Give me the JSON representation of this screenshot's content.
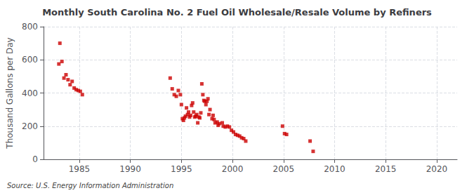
{
  "chart_data": {
    "type": "scatter",
    "title": "Monthly South Carolina No. 2 Fuel Oil Wholesale/Resale Volume by Refiners",
    "ylabel": "Thousand Gallons per Day",
    "source": "Source: U.S. Energy Information Administration",
    "color": "#cc0000",
    "marker": "square",
    "grid": true,
    "xlim": [
      1981.5,
      2022
    ],
    "ylim": [
      0,
      800
    ],
    "xticks": [
      1985,
      1990,
      1995,
      2000,
      2005,
      2010,
      2015,
      2020
    ],
    "yticks": [
      0,
      200,
      400,
      600,
      800
    ],
    "x": [
      1983.0,
      1983.1,
      1983.3,
      1983.5,
      1983.7,
      1983.9,
      1984.1,
      1984.3,
      1984.5,
      1984.7,
      1984.9,
      1985.1,
      1985.3,
      1993.9,
      1994.1,
      1994.3,
      1994.5,
      1994.7,
      1994.9,
      1995.0,
      1995.1,
      1995.2,
      1995.3,
      1995.4,
      1995.5,
      1995.6,
      1995.7,
      1995.8,
      1995.9,
      1996.0,
      1996.1,
      1996.2,
      1996.3,
      1996.4,
      1996.5,
      1996.6,
      1996.7,
      1996.8,
      1996.9,
      1997.0,
      1997.1,
      1997.2,
      1997.3,
      1997.4,
      1997.5,
      1997.6,
      1997.7,
      1997.8,
      1998.0,
      1998.1,
      1998.2,
      1998.3,
      1998.5,
      1998.6,
      1998.7,
      1999.0,
      1999.1,
      1999.3,
      1999.5,
      1999.7,
      1999.9,
      2000.1,
      2000.3,
      2000.5,
      2000.7,
      2000.9,
      2001.1,
      2001.3,
      2004.9,
      2005.1,
      2005.3,
      2007.6,
      2007.9
    ],
    "values": [
      575,
      700,
      590,
      490,
      510,
      480,
      450,
      470,
      430,
      420,
      415,
      410,
      390,
      490,
      425,
      390,
      380,
      415,
      390,
      330,
      245,
      235,
      250,
      260,
      310,
      270,
      285,
      255,
      265,
      325,
      340,
      285,
      255,
      260,
      270,
      220,
      255,
      250,
      280,
      455,
      390,
      355,
      350,
      330,
      350,
      365,
      270,
      300,
      245,
      265,
      240,
      220,
      225,
      205,
      215,
      220,
      200,
      195,
      200,
      195,
      175,
      165,
      150,
      145,
      140,
      130,
      125,
      110,
      200,
      155,
      150,
      110,
      48
    ]
  }
}
